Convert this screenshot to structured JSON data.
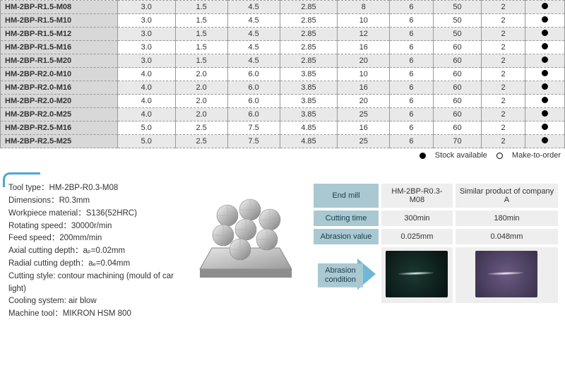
{
  "table": {
    "col_widths": [
      "130px",
      "64px",
      "58px",
      "58px",
      "64px",
      "58px",
      "48px",
      "54px",
      "48px",
      "44px"
    ],
    "rows": [
      {
        "bg": "grey",
        "cells": [
          "HM-2BP-R1.5-M08",
          "3.0",
          "1.5",
          "4.5",
          "2.85",
          "8",
          "6",
          "50",
          "2",
          "●"
        ]
      },
      {
        "bg": "white",
        "cells": [
          "HM-2BP-R1.5-M10",
          "3.0",
          "1.5",
          "4.5",
          "2.85",
          "10",
          "6",
          "50",
          "2",
          "●"
        ]
      },
      {
        "bg": "grey",
        "cells": [
          "HM-2BP-R1.5-M12",
          "3.0",
          "1.5",
          "4.5",
          "2.85",
          "12",
          "6",
          "50",
          "2",
          "●"
        ]
      },
      {
        "bg": "white",
        "cells": [
          "HM-2BP-R1.5-M16",
          "3.0",
          "1.5",
          "4.5",
          "2.85",
          "16",
          "6",
          "60",
          "2",
          "●"
        ]
      },
      {
        "bg": "grey",
        "cells": [
          "HM-2BP-R1.5-M20",
          "3.0",
          "1.5",
          "4.5",
          "2.85",
          "20",
          "6",
          "60",
          "2",
          "●"
        ]
      },
      {
        "bg": "white",
        "cells": [
          "HM-2BP-R2.0-M10",
          "4.0",
          "2.0",
          "6.0",
          "3.85",
          "10",
          "6",
          "60",
          "2",
          "●"
        ]
      },
      {
        "bg": "grey",
        "cells": [
          "HM-2BP-R2.0-M16",
          "4.0",
          "2.0",
          "6.0",
          "3.85",
          "16",
          "6",
          "60",
          "2",
          "●"
        ]
      },
      {
        "bg": "white",
        "cells": [
          "HM-2BP-R2.0-M20",
          "4.0",
          "2.0",
          "6.0",
          "3.85",
          "20",
          "6",
          "60",
          "2",
          "●"
        ]
      },
      {
        "bg": "grey",
        "cells": [
          "HM-2BP-R2.0-M25",
          "4.0",
          "2.0",
          "6.0",
          "3.85",
          "25",
          "6",
          "60",
          "2",
          "●"
        ]
      },
      {
        "bg": "white",
        "cells": [
          "HM-2BP-R2.5-M16",
          "5.0",
          "2.5",
          "7.5",
          "4.85",
          "16",
          "6",
          "60",
          "2",
          "●"
        ]
      },
      {
        "bg": "grey",
        "cells": [
          "HM-2BP-R2.5-M25",
          "5.0",
          "2.5",
          "7.5",
          "4.85",
          "25",
          "6",
          "70",
          "2",
          "●"
        ]
      }
    ]
  },
  "legend": {
    "stock": "Stock available",
    "order": "Make-to-order"
  },
  "spec": [
    "Tool type：HM-2BP-R0.3-M08",
    "Dimensions：R0.3mm",
    "Workpiece material：S136(52HRC)",
    "Rotating speed：30000r/min",
    "Feed speed：200mm/min",
    "Axial cutting depth：aₚ=0.02mm",
    "Radial cutting depth：aₑ=0.04mm",
    "Cutting style: contour machining (mould of car light)",
    "Cooling system: air blow",
    "Machine tool：MIKRON HSM 800"
  ],
  "compare": {
    "labels": {
      "endmill": "End mill",
      "cutting": "Cutting time",
      "abr_val": "Abrasion value",
      "abr_cond": "Abrasion condition"
    },
    "col1_header": "HM-2BP-R0.3-M08",
    "col2_header": "Similar product of company A",
    "cutting": [
      "300min",
      "180min"
    ],
    "abr_val": [
      "0.025mm",
      "0.048mm"
    ],
    "abr_colors": [
      "#1a3832",
      "#6b5a83"
    ]
  },
  "colors": {
    "grey_row": "#e9e9e9",
    "white_row": "#ffffff",
    "label_col": "#d8d8d8",
    "accent": "#4aa8d8",
    "cmp_label_bg": "#a9c8d2",
    "cmp_cell_bg": "#eeeeee"
  }
}
